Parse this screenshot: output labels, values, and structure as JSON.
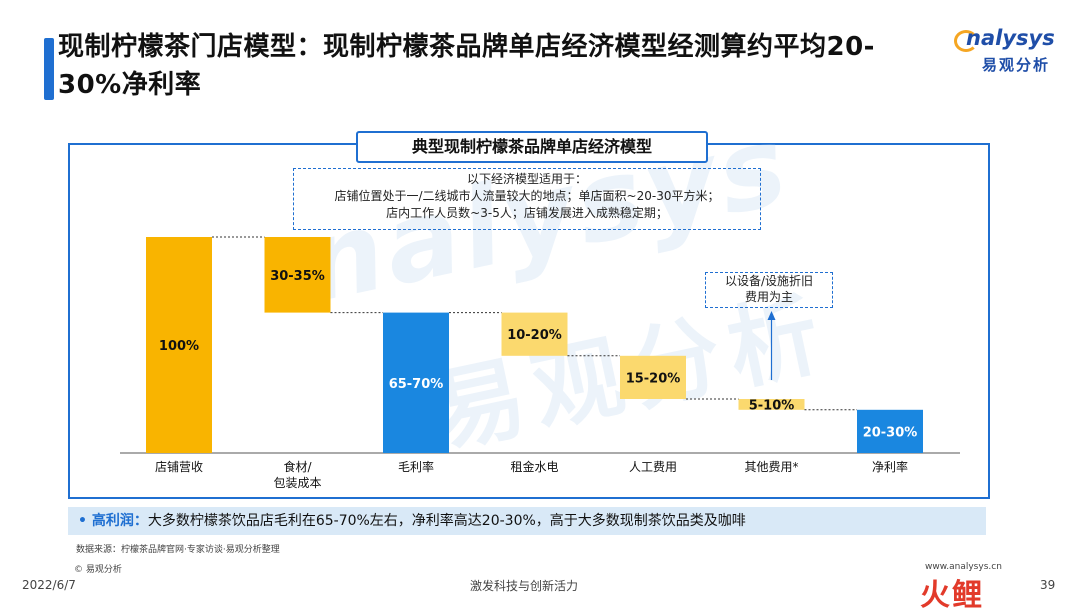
{
  "title": "现制柠檬茶门店模型：现制柠檬茶品牌单店经济模型经测算约平均20-30%净利率",
  "logo": {
    "en": "nalysys",
    "cn": "易观分析"
  },
  "box_title": "典型现制柠檬茶品牌单店经济模型",
  "note": {
    "line1": "以下经济模型适用于：",
    "line2": "店铺位置处于一/二线城市人流量较大的地点；单店面积~20-30平方米；",
    "line3": "店内工作人员数~3-5人；店铺发展进入成熟稳定期；"
  },
  "depreciation_note": {
    "line1": "以设备/设施折旧",
    "line2": "费用为主"
  },
  "watermark": {
    "en": "nalysys",
    "cn": "易观分析"
  },
  "chart_data": {
    "type": "bar",
    "subtype": "waterfall",
    "title": "典型现制柠檬茶品牌单店经济模型",
    "categories": [
      "店铺营收",
      "食材/\n包装成本",
      "毛利率",
      "租金水电",
      "人工费用",
      "其他费用*",
      "净利率"
    ],
    "labels": [
      "100%",
      "30-35%",
      "65-70%",
      "10-20%",
      "15-20%",
      "5-10%",
      "20-30%"
    ],
    "ranges": [
      [
        0,
        100
      ],
      [
        65,
        100
      ],
      [
        0,
        65
      ],
      [
        45,
        65
      ],
      [
        25,
        45
      ],
      [
        20,
        25
      ],
      [
        0,
        20
      ]
    ],
    "kinds": [
      "total",
      "decrease",
      "subtotal",
      "decrease",
      "decrease",
      "decrease",
      "total"
    ],
    "colors": {
      "total": "#f9b400",
      "decrease_strong": "#f9b400",
      "decrease_light": "#fbd96e",
      "subtotal": "#1a87e0",
      "net": "#1a87e0"
    },
    "ylim": [
      0,
      100
    ]
  },
  "highlight": {
    "lead": "• 高利润：",
    "text": "大多数柠檬茶饮品店毛利在65-70%左右，净利率高达20-30%，高于大多数现制茶饮品类及咖啡"
  },
  "source": "数据来源：柠檬茶品牌官网·专家访谈·易观分析整理",
  "copyright": "© 易观分析",
  "footer": {
    "date": "2022/6/7",
    "center": "激发科技与创新活力",
    "url": "www.analysys.cn",
    "page": "39",
    "corner_logo": "火鲤"
  }
}
